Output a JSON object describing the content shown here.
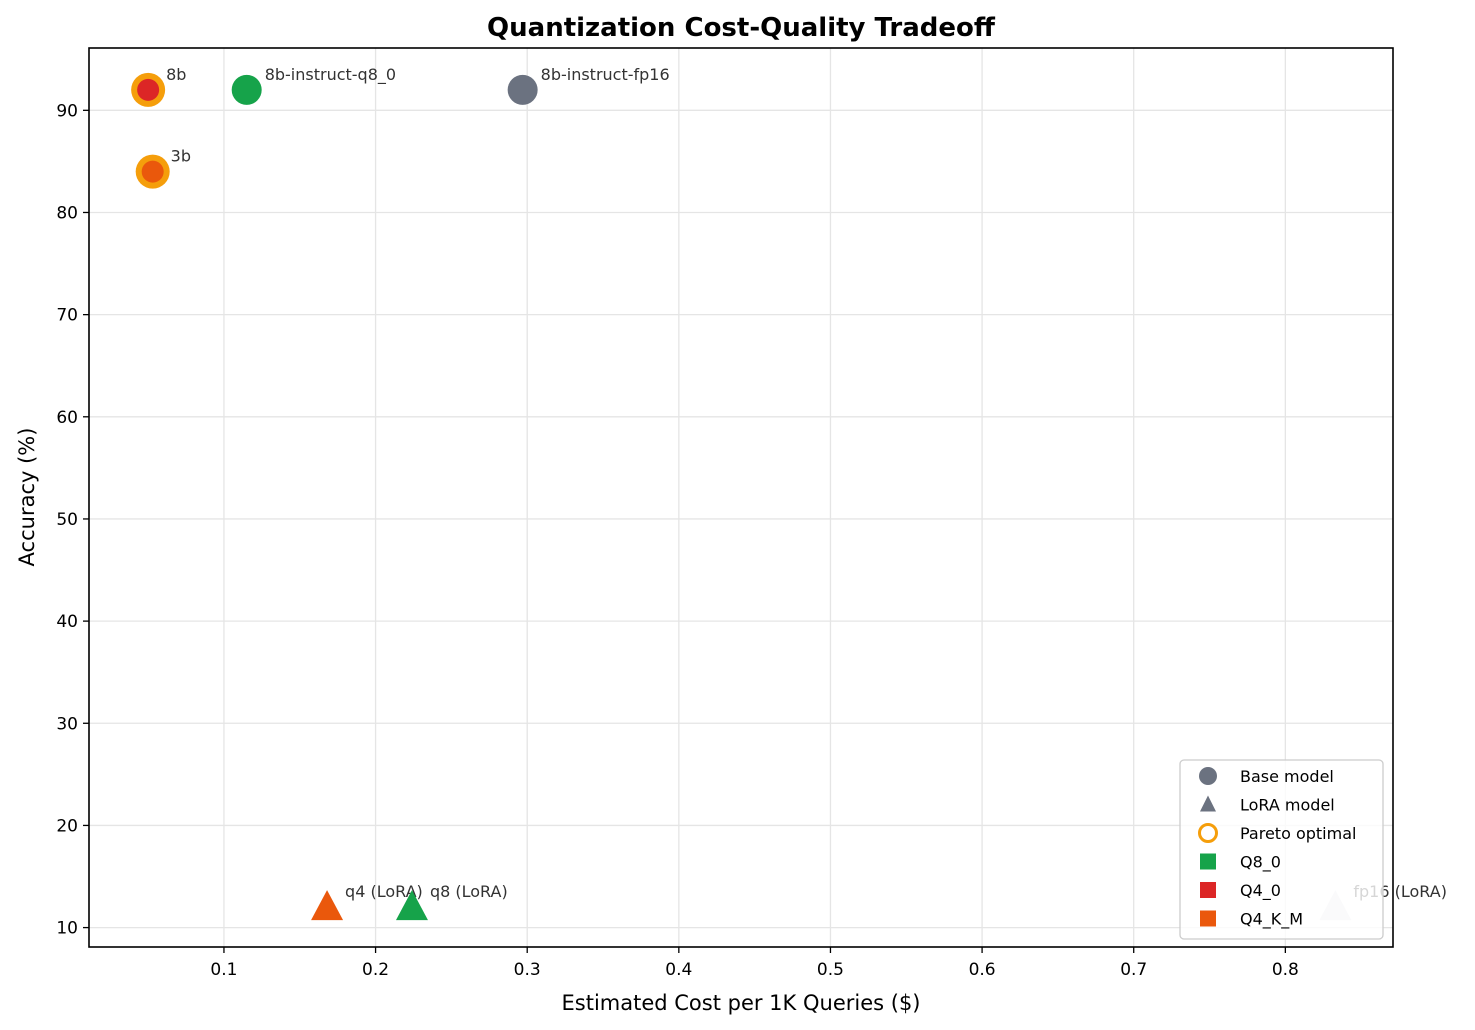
{
  "chart_data": {
    "type": "scatter",
    "title": "Quantization Cost-Quality Tradeoff",
    "xlabel": "Estimated Cost per 1K Queries ($)",
    "ylabel": "Accuracy (%)",
    "xlim": [
      0.011,
      0.871
    ],
    "ylim": [
      8.1,
      96.1
    ],
    "xticks": [
      0.1,
      0.2,
      0.3,
      0.4,
      0.5,
      0.6,
      0.7,
      0.8
    ],
    "xtick_labels": [
      "0.1",
      "0.2",
      "0.3",
      "0.4",
      "0.5",
      "0.6",
      "0.7",
      "0.8"
    ],
    "yticks": [
      10,
      20,
      30,
      40,
      50,
      60,
      70,
      80,
      90
    ],
    "ytick_labels": [
      "10",
      "20",
      "30",
      "40",
      "50",
      "60",
      "70",
      "80",
      "90"
    ],
    "grid": true,
    "legend_placement": "lower-right",
    "points": [
      {
        "label": "8b",
        "x": 0.05,
        "y": 92,
        "marker": "circle",
        "color": "#dc2626",
        "pareto": true
      },
      {
        "label": "3b",
        "x": 0.053,
        "y": 84,
        "marker": "circle",
        "color": "#ea580c",
        "pareto": true
      },
      {
        "label": "8b-instruct-q8_0",
        "x": 0.115,
        "y": 92,
        "marker": "circle",
        "color": "#16a34a",
        "pareto": false
      },
      {
        "label": "8b-instruct-fp16",
        "x": 0.297,
        "y": 92,
        "marker": "circle",
        "color": "#6b7280",
        "pareto": false
      },
      {
        "label": "q4 (LoRA)",
        "x": 0.168,
        "y": 12,
        "marker": "triangle",
        "color": "#ea580c",
        "pareto": false
      },
      {
        "label": "q8 (LoRA)",
        "x": 0.224,
        "y": 12,
        "marker": "triangle",
        "color": "#16a34a",
        "pareto": false
      },
      {
        "label": "fp16 (LoRA)",
        "x": 0.833,
        "y": 12,
        "marker": "triangle",
        "color": "#e5e7eb",
        "pareto": false
      }
    ],
    "pareto_color": "#f59e0b",
    "legend": [
      {
        "label": "Base model",
        "marker": "circle",
        "color": "#6b7280"
      },
      {
        "label": "LoRA model",
        "marker": "triangle",
        "color": "#6b7280"
      },
      {
        "label": "Pareto optimal",
        "marker": "ring",
        "color": "#f59e0b"
      },
      {
        "label": "Q8_0",
        "marker": "square",
        "color": "#16a34a"
      },
      {
        "label": "Q4_0",
        "marker": "square",
        "color": "#dc2626"
      },
      {
        "label": "Q4_K_M",
        "marker": "square",
        "color": "#ea580c"
      }
    ]
  }
}
